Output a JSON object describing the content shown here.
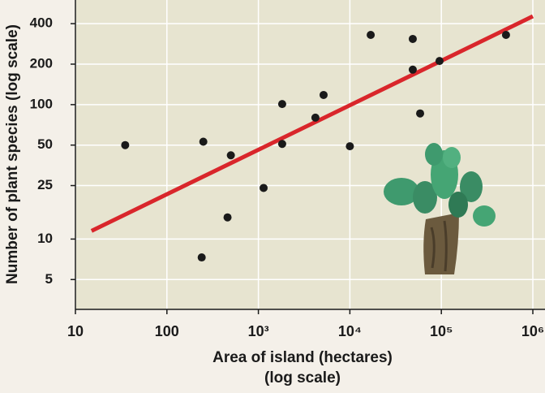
{
  "chart_data": {
    "type": "scatter",
    "ylabel": "Number of plant species (log scale)",
    "xlabel_lines": [
      "Area of island (hectares)",
      "(log scale)"
    ],
    "x": [
      35,
      250,
      500,
      460,
      240,
      1140,
      1820,
      1820,
      4200,
      5160,
      10000,
      16900,
      48700,
      48700,
      58600,
      95500,
      509000
    ],
    "values": [
      50,
      53,
      42,
      14.5,
      7.3,
      24,
      101,
      51,
      80,
      118,
      49,
      330,
      308,
      182,
      86,
      211,
      330
    ],
    "color": "#1a1a1a",
    "trend_line": {
      "x": [
        15,
        1000000
      ],
      "values": [
        11.5,
        454
      ],
      "color": "#d9262b"
    },
    "xscale": "log",
    "yscale": "log",
    "xlim": [
      10,
      1000000
    ],
    "ylim": [
      3,
      600
    ],
    "xticks": [
      10,
      100,
      {
        "value": 1000,
        "label": "10³"
      },
      {
        "value": 10000,
        "label": "10⁴"
      },
      {
        "value": 100000,
        "label": "10⁵"
      },
      {
        "value": 1000000,
        "label": "10⁶"
      }
    ],
    "yticks": [
      5,
      10,
      25,
      50,
      100,
      200,
      400
    ],
    "grid": true
  }
}
